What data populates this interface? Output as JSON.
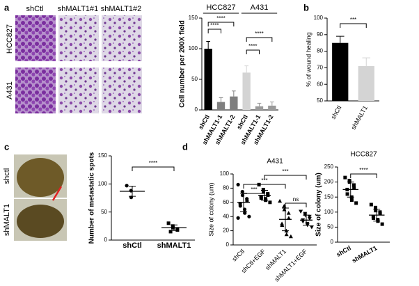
{
  "panels": {
    "labels": [
      "a",
      "b",
      "c",
      "d"
    ],
    "photo_a_columns": [
      "shCtl",
      "shMALT1#1",
      "shMALT1#2"
    ],
    "photo_a_rows": [
      "HCC827",
      "A431"
    ],
    "photo_c_rows": [
      "shctl",
      "shMALT1"
    ]
  },
  "chart_data": [
    {
      "type": "bar",
      "ylabel": "Cell number per 200X field",
      "categories": [
        "shCtl",
        "shMALT1-1",
        "shMALT1-2",
        "shCtl",
        "shMALT1-1",
        "shMALT1-2"
      ],
      "values": [
        100,
        13,
        22,
        61,
        6,
        7
      ],
      "errors": [
        12,
        7,
        9,
        11,
        5,
        6
      ],
      "colors": [
        "#000000",
        "#7f7f7f",
        "#7f7f7f",
        "#d4d4d4",
        "#9a9a9a",
        "#9a9a9a"
      ],
      "groups": [
        {
          "label": "HCC827",
          "from": 0,
          "to": 2
        },
        {
          "label": "A431",
          "from": 3,
          "to": 5
        }
      ],
      "annotations": [
        {
          "text": "****",
          "from": 0,
          "to": 1
        },
        {
          "text": "****",
          "from": 0,
          "to": 2
        },
        {
          "text": "****",
          "from": 3,
          "to": 4
        },
        {
          "text": "****",
          "from": 3,
          "to": 5
        }
      ],
      "ylim": [
        0,
        150
      ],
      "yticks": [
        0,
        50,
        100,
        150
      ]
    },
    {
      "type": "bar",
      "ylabel": "% of wound healing",
      "categories": [
        "shCtl",
        "shMALT1"
      ],
      "values": [
        85,
        71
      ],
      "errors": [
        4,
        5
      ],
      "colors": [
        "#000000",
        "#d4d4d4"
      ],
      "annotations": [
        {
          "text": "***",
          "from": 0,
          "to": 1
        }
      ],
      "ylim": [
        50,
        100
      ],
      "yticks": [
        50,
        60,
        70,
        80,
        90,
        100
      ]
    },
    {
      "type": "strip",
      "ylabel": "Number of metastatic spots",
      "categories": [
        "shCtl",
        "shMALT1"
      ],
      "points": [
        [
          97,
          88,
          76
        ],
        [
          30,
          25,
          22,
          20,
          18,
          15
        ]
      ],
      "means": [
        87,
        22
      ],
      "errors": [
        9,
        5
      ],
      "markers": [
        "circle",
        "square"
      ],
      "annotations": [
        {
          "text": "****",
          "from": 0,
          "to": 1
        }
      ],
      "ylim": [
        0,
        150
      ],
      "yticks": [
        0,
        50,
        100,
        150
      ]
    },
    {
      "type": "strip",
      "title": "A431",
      "ylabel": "Size of colony (um)",
      "categories": [
        "shCtl",
        "shCtl+EGF",
        "shMALT1",
        "shMALT1+EGF"
      ],
      "points": [
        [
          85,
          75,
          70,
          65,
          62,
          58,
          55,
          50,
          45,
          40,
          38
        ],
        [
          85,
          78,
          75,
          72,
          70,
          68,
          66,
          65,
          63,
          60
        ],
        [
          62,
          55,
          50,
          45,
          38,
          30,
          28,
          20,
          15,
          12
        ],
        [
          47,
          44,
          42,
          40,
          37,
          35,
          33,
          30,
          28,
          25
        ]
      ],
      "means": [
        60,
        70,
        36,
        35
      ],
      "errors": [
        13,
        7,
        16,
        7
      ],
      "markers": [
        "circle",
        "square",
        "triangle",
        "down-triangle"
      ],
      "annotations": [
        {
          "text": "***",
          "from": 0,
          "to": 1
        },
        {
          "text": "***",
          "from": 0,
          "to": 2
        },
        {
          "text": "***",
          "from": 1,
          "to": 3
        },
        {
          "text": "ns",
          "from": 2,
          "to": 3
        }
      ],
      "ylim": [
        0,
        100
      ],
      "yticks": [
        0,
        20,
        40,
        60,
        80,
        100
      ]
    },
    {
      "type": "strip",
      "title": "HCC827",
      "ylabel": "Size of colony (um)",
      "categories": [
        "shCtl",
        "shMALT1"
      ],
      "points": [
        [
          215,
          205,
          200,
          190,
          180,
          175,
          160,
          150,
          140,
          130
        ],
        [
          125,
          115,
          105,
          100,
          95,
          85,
          80,
          75,
          70,
          60
        ]
      ],
      "means": [
        175,
        90
      ],
      "errors": [
        25,
        20
      ],
      "markers": [
        "square",
        "square"
      ],
      "annotations": [
        {
          "text": "****",
          "from": 0,
          "to": 1
        }
      ],
      "ylim": [
        0,
        250
      ],
      "yticks": [
        0,
        50,
        100,
        150,
        200,
        250
      ]
    }
  ]
}
